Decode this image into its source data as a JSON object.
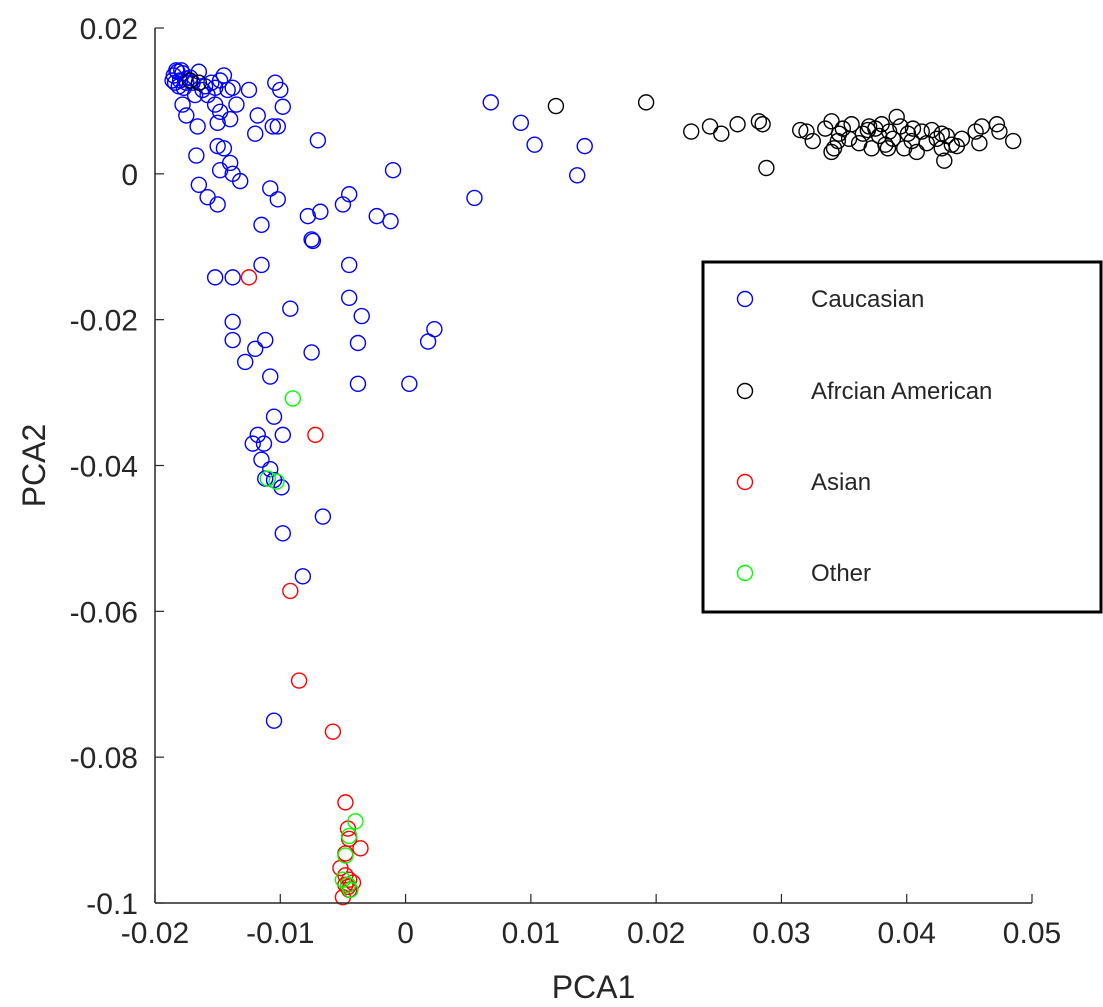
{
  "chart_data": {
    "type": "scatter",
    "xlabel": "PCA1",
    "ylabel": "PCA2",
    "xlim": [
      -0.02,
      0.05
    ],
    "ylim": [
      -0.1,
      0.02
    ],
    "xticks": [
      -0.02,
      -0.01,
      0,
      0.01,
      0.02,
      0.03,
      0.04,
      0.05
    ],
    "xtick_labels": [
      "-0.02",
      "-0.01",
      "0",
      "0.01",
      "0.02",
      "0.03",
      "0.04",
      "0.05"
    ],
    "yticks": [
      0.02,
      0,
      -0.02,
      -0.04,
      -0.06,
      -0.08,
      -0.1
    ],
    "ytick_labels": [
      "0.02",
      "0",
      "-0.02",
      "-0.04",
      "-0.06",
      "-0.08",
      "-0.1"
    ],
    "grid": false,
    "legend_position": "right",
    "marker": "open-circle",
    "series": [
      {
        "name": "Caucasian",
        "color": "#0000ff",
        "points": [
          [
            -0.0185,
            0.0135
          ],
          [
            -0.0182,
            0.014
          ],
          [
            -0.018,
            0.0128
          ],
          [
            -0.0184,
            0.0125
          ],
          [
            -0.0178,
            0.0138
          ],
          [
            -0.0183,
            0.0142
          ],
          [
            -0.0176,
            0.013
          ],
          [
            -0.0181,
            0.012
          ],
          [
            -0.0172,
            0.0132
          ],
          [
            -0.0186,
            0.0128
          ],
          [
            -0.0175,
            0.0125
          ],
          [
            -0.0179,
            0.0142
          ],
          [
            -0.0177,
            0.0118
          ],
          [
            -0.017,
            0.0125
          ],
          [
            -0.0165,
            0.014
          ],
          [
            -0.016,
            0.012
          ],
          [
            -0.0155,
            0.0125
          ],
          [
            -0.0168,
            0.0108
          ],
          [
            -0.0162,
            0.0115
          ],
          [
            -0.0158,
            0.0108
          ],
          [
            -0.0152,
            0.0118
          ],
          [
            -0.0145,
            0.0135
          ],
          [
            -0.0142,
            0.0115
          ],
          [
            -0.0148,
            0.0128
          ],
          [
            -0.0138,
            0.0118
          ],
          [
            -0.0125,
            0.0115
          ],
          [
            -0.0178,
            0.0095
          ],
          [
            -0.0175,
            0.008
          ],
          [
            -0.0166,
            0.0065
          ],
          [
            -0.0152,
            0.0095
          ],
          [
            -0.015,
            0.007
          ],
          [
            -0.0148,
            0.0085
          ],
          [
            -0.0135,
            0.0095
          ],
          [
            -0.014,
            0.0075
          ],
          [
            -0.0118,
            0.008
          ],
          [
            -0.012,
            0.0055
          ],
          [
            -0.0106,
            0.0065
          ],
          [
            -0.0102,
            0.0065
          ],
          [
            -0.0104,
            0.0125
          ],
          [
            -0.01,
            0.0115
          ],
          [
            -0.0098,
            0.0092
          ],
          [
            -0.007,
            0.0046
          ],
          [
            -0.0167,
            0.0025
          ],
          [
            -0.015,
            0.0038
          ],
          [
            -0.0145,
            0.0035
          ],
          [
            -0.014,
            0.0015
          ],
          [
            -0.0148,
            0.0005
          ],
          [
            -0.0138,
            0.0
          ],
          [
            -0.0132,
            -0.001
          ],
          [
            -0.0165,
            -0.0015
          ],
          [
            -0.0158,
            -0.0032
          ],
          [
            -0.015,
            -0.0042
          ],
          [
            -0.0108,
            -0.002
          ],
          [
            -0.0102,
            -0.0035
          ],
          [
            -0.0115,
            -0.007
          ],
          [
            -0.0078,
            -0.0058
          ],
          [
            -0.0068,
            -0.0052
          ],
          [
            -0.0075,
            -0.009
          ],
          [
            -0.0074,
            -0.0092
          ],
          [
            -0.005,
            -0.0042
          ],
          [
            -0.0045,
            -0.0028
          ],
          [
            -0.0023,
            -0.0058
          ],
          [
            -0.0012,
            -0.0065
          ],
          [
            -0.001,
            0.0005
          ],
          [
            -0.0152,
            -0.0142
          ],
          [
            -0.0138,
            -0.0142
          ],
          [
            -0.0115,
            -0.0125
          ],
          [
            -0.0045,
            -0.0125
          ],
          [
            -0.0045,
            -0.017
          ],
          [
            -0.0092,
            -0.0185
          ],
          [
            -0.0138,
            -0.0203
          ],
          [
            -0.0138,
            -0.0228
          ],
          [
            -0.0112,
            -0.0228
          ],
          [
            -0.012,
            -0.024
          ],
          [
            -0.0128,
            -0.0258
          ],
          [
            -0.0108,
            -0.0278
          ],
          [
            -0.0075,
            -0.0245
          ],
          [
            -0.0035,
            -0.0195
          ],
          [
            -0.0038,
            -0.0232
          ],
          [
            -0.0038,
            -0.0288
          ],
          [
            0.0003,
            -0.0288
          ],
          [
            0.0018,
            -0.023
          ],
          [
            0.0023,
            -0.0213
          ],
          [
            -0.0105,
            -0.0333
          ],
          [
            -0.0098,
            -0.0358
          ],
          [
            -0.0118,
            -0.0358
          ],
          [
            -0.0122,
            -0.037
          ],
          [
            -0.0113,
            -0.037
          ],
          [
            -0.0115,
            -0.0392
          ],
          [
            -0.0108,
            -0.0405
          ],
          [
            -0.0112,
            -0.0418
          ],
          [
            -0.0105,
            -0.042
          ],
          [
            -0.0099,
            -0.043
          ],
          [
            -0.0098,
            -0.0493
          ],
          [
            -0.0066,
            -0.047
          ],
          [
            -0.0082,
            -0.0552
          ],
          [
            -0.0105,
            -0.075
          ],
          [
            0.0055,
            -0.0033
          ],
          [
            0.0068,
            0.0098
          ],
          [
            0.0092,
            0.007
          ],
          [
            0.0103,
            0.004
          ],
          [
            0.0137,
            -0.0002
          ],
          [
            0.0143,
            0.0038
          ]
        ]
      },
      {
        "name": "Afrcian American",
        "color": "#000000",
        "points": [
          [
            -0.0172,
            0.0128
          ],
          [
            -0.0165,
            0.0125
          ],
          [
            0.012,
            0.0093
          ],
          [
            0.0192,
            0.0098
          ],
          [
            0.0228,
            0.0058
          ],
          [
            0.0243,
            0.0065
          ],
          [
            0.0252,
            0.0055
          ],
          [
            0.0265,
            0.0068
          ],
          [
            0.0282,
            0.0072
          ],
          [
            0.0285,
            0.0068
          ],
          [
            0.0288,
            0.0008
          ],
          [
            0.0315,
            0.006
          ],
          [
            0.032,
            0.0058
          ],
          [
            0.0325,
            0.0045
          ],
          [
            0.0335,
            0.0062
          ],
          [
            0.034,
            0.0072
          ],
          [
            0.0342,
            0.0035
          ],
          [
            0.0346,
            0.0055
          ],
          [
            0.0349,
            0.0062
          ],
          [
            0.0354,
            0.0048
          ],
          [
            0.0356,
            0.0068
          ],
          [
            0.0362,
            0.0042
          ],
          [
            0.0365,
            0.0055
          ],
          [
            0.0369,
            0.006
          ],
          [
            0.0372,
            0.0035
          ],
          [
            0.0375,
            0.0062
          ],
          [
            0.0378,
            0.0052
          ],
          [
            0.038,
            0.0068
          ],
          [
            0.0383,
            0.004
          ],
          [
            0.0386,
            0.0058
          ],
          [
            0.0389,
            0.0048
          ],
          [
            0.0392,
            0.0078
          ],
          [
            0.0395,
            0.0065
          ],
          [
            0.0398,
            0.0035
          ],
          [
            0.0401,
            0.0055
          ],
          [
            0.0404,
            0.0045
          ],
          [
            0.0408,
            0.003
          ],
          [
            0.0412,
            0.0058
          ],
          [
            0.0416,
            0.0042
          ],
          [
            0.042,
            0.006
          ],
          [
            0.0424,
            0.0048
          ],
          [
            0.0428,
            0.0055
          ],
          [
            0.043,
            0.0018
          ],
          [
            0.0432,
            0.0052
          ],
          [
            0.0436,
            0.004
          ],
          [
            0.044,
            0.0038
          ],
          [
            0.0444,
            0.0048
          ],
          [
            0.0455,
            0.0058
          ],
          [
            0.0458,
            0.0042
          ],
          [
            0.046,
            0.0065
          ],
          [
            0.0472,
            0.0068
          ],
          [
            0.0474,
            0.0058
          ],
          [
            0.0485,
            0.0045
          ],
          [
            0.034,
            0.003
          ],
          [
            0.037,
            0.0065
          ],
          [
            0.0385,
            0.0035
          ],
          [
            0.0405,
            0.0062
          ],
          [
            0.0428,
            0.0035
          ],
          [
            0.0345,
            0.0045
          ]
        ]
      },
      {
        "name": "Asian",
        "color": "#ff0000",
        "points": [
          [
            -0.0125,
            -0.0142
          ],
          [
            -0.0072,
            -0.0358
          ],
          [
            -0.0092,
            -0.0572
          ],
          [
            -0.0085,
            -0.0695
          ],
          [
            -0.0058,
            -0.0765
          ],
          [
            -0.0048,
            -0.0862
          ],
          [
            -0.0046,
            -0.0898
          ],
          [
            -0.0045,
            -0.0912
          ],
          [
            -0.0036,
            -0.0925
          ],
          [
            -0.0048,
            -0.0932
          ],
          [
            -0.0052,
            -0.0952
          ],
          [
            -0.0048,
            -0.0962
          ],
          [
            -0.0045,
            -0.0968
          ],
          [
            -0.0042,
            -0.0972
          ],
          [
            -0.0048,
            -0.0975
          ],
          [
            -0.0046,
            -0.0978
          ],
          [
            -0.0045,
            -0.0982
          ],
          [
            -0.005,
            -0.0992
          ]
        ]
      },
      {
        "name": "Other",
        "color": "#00ff00",
        "points": [
          [
            -0.009,
            -0.0308
          ],
          [
            -0.011,
            -0.0418
          ],
          [
            -0.0103,
            -0.0422
          ],
          [
            -0.004,
            -0.0888
          ],
          [
            -0.0045,
            -0.0908
          ],
          [
            -0.0048,
            -0.0935
          ],
          [
            -0.005,
            -0.0968
          ],
          [
            -0.0046,
            -0.0975
          ],
          [
            -0.0044,
            -0.0982
          ]
        ]
      }
    ]
  }
}
